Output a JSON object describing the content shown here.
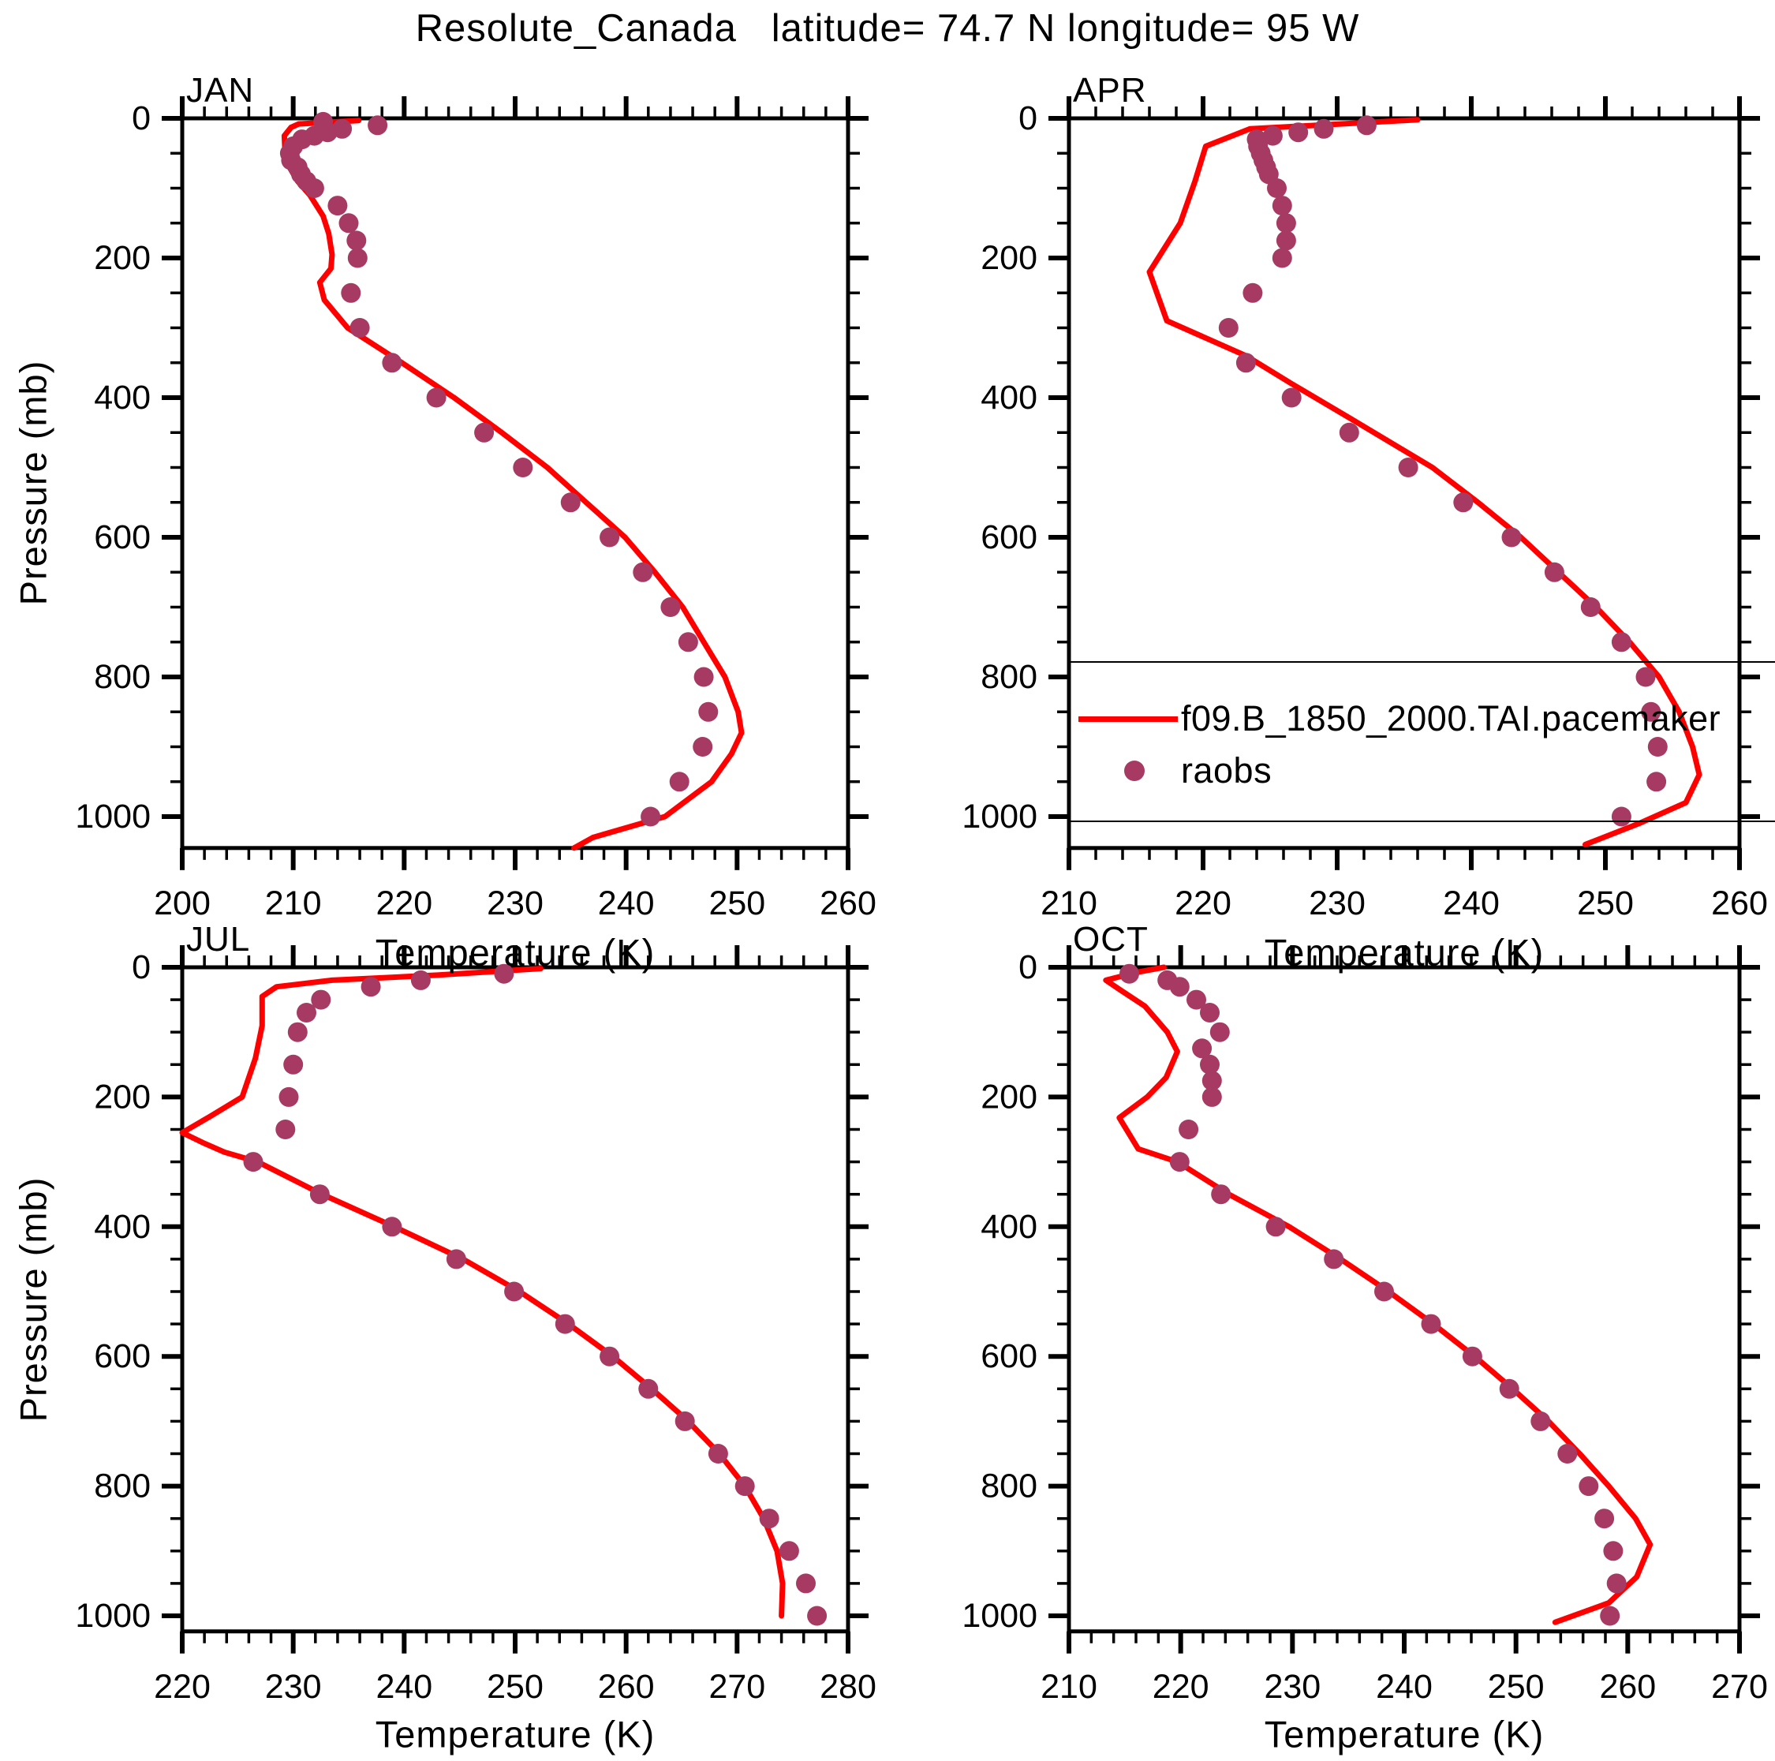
{
  "title": "Resolute_Canada   latitude= 74.7 N longitude= 95 W",
  "labels": {
    "xlabel": "Temperature (K)",
    "ylabel": "Pressure (mb)"
  },
  "legend": {
    "model_label": "f09.B_1850_2000.TAI.pacemaker",
    "obs_label": "raobs"
  },
  "colors": {
    "model_line": "#ff0000",
    "obs_dot": "#a63a62",
    "axis": "#000000",
    "background": "#ffffff"
  },
  "chart_data": {
    "type": "line+scatter",
    "title": "Resolute_Canada   latitude= 74.7 N longitude= 95 W",
    "xlabel": "Temperature (K)",
    "ylabel": "Pressure (mb)",
    "points_format": "[pressure_mb, temperature_K]",
    "y_axis": {
      "min": 0,
      "max": 1045,
      "major_step": 200,
      "minor_step": 50,
      "tick_max": 1000,
      "inverted": true
    },
    "legend_entries": [
      {
        "label": "f09.B_1850_2000.TAI.pacemaker",
        "marker": "red solid line"
      },
      {
        "label": "raobs",
        "marker": "maroon filled dot"
      }
    ],
    "panels": [
      {
        "month": "JAN",
        "x_axis": {
          "min": 200,
          "max": 260,
          "major_step": 10,
          "minor_step": 2
        },
        "model": [
          [
            3,
            215.9
          ],
          [
            8,
            210.5
          ],
          [
            13,
            209.8
          ],
          [
            25,
            209.2
          ],
          [
            60,
            209.3
          ],
          [
            90,
            210.4
          ],
          [
            110,
            211.5
          ],
          [
            140,
            212.7
          ],
          [
            165,
            213.2
          ],
          [
            195,
            213.5
          ],
          [
            215,
            213.4
          ],
          [
            235,
            212.4
          ],
          [
            260,
            212.8
          ],
          [
            300,
            214.9
          ],
          [
            350,
            219.8
          ],
          [
            400,
            224.5
          ],
          [
            450,
            228.8
          ],
          [
            500,
            232.9
          ],
          [
            550,
            236.4
          ],
          [
            600,
            239.9
          ],
          [
            650,
            242.6
          ],
          [
            700,
            245.1
          ],
          [
            750,
            247.0
          ],
          [
            800,
            248.9
          ],
          [
            850,
            250.1
          ],
          [
            880,
            250.4
          ],
          [
            910,
            249.5
          ],
          [
            950,
            247.7
          ],
          [
            1000,
            243.5
          ],
          [
            1030,
            237.0
          ],
          [
            1045,
            235.3
          ]
        ],
        "raobs": [
          [
            5,
            212.7
          ],
          [
            10,
            217.6
          ],
          [
            15,
            214.4
          ],
          [
            20,
            213.1
          ],
          [
            25,
            211.9
          ],
          [
            30,
            210.8
          ],
          [
            40,
            210.0
          ],
          [
            50,
            209.7
          ],
          [
            60,
            209.8
          ],
          [
            70,
            210.4
          ],
          [
            80,
            210.7
          ],
          [
            90,
            211.2
          ],
          [
            100,
            211.9
          ],
          [
            125,
            214.0
          ],
          [
            150,
            215.0
          ],
          [
            175,
            215.7
          ],
          [
            200,
            215.8
          ],
          [
            250,
            215.2
          ],
          [
            300,
            216.0
          ],
          [
            350,
            218.9
          ],
          [
            400,
            222.9
          ],
          [
            450,
            227.2
          ],
          [
            500,
            230.7
          ],
          [
            550,
            235.0
          ],
          [
            600,
            238.5
          ],
          [
            650,
            241.5
          ],
          [
            700,
            244.0
          ],
          [
            750,
            245.6
          ],
          [
            800,
            247.0
          ],
          [
            850,
            247.4
          ],
          [
            900,
            246.9
          ],
          [
            950,
            244.8
          ],
          [
            1000,
            242.2
          ]
        ]
      },
      {
        "month": "APR",
        "x_axis": {
          "min": 210,
          "max": 260,
          "major_step": 10,
          "minor_step": 2
        },
        "model": [
          [
            2,
            236.0
          ],
          [
            15,
            223.5
          ],
          [
            40,
            220.2
          ],
          [
            90,
            219.4
          ],
          [
            150,
            218.3
          ],
          [
            220,
            216.0
          ],
          [
            290,
            217.3
          ],
          [
            340,
            223.2
          ],
          [
            380,
            226.6
          ],
          [
            430,
            231.0
          ],
          [
            500,
            237.1
          ],
          [
            550,
            240.5
          ],
          [
            600,
            243.7
          ],
          [
            650,
            246.5
          ],
          [
            700,
            249.3
          ],
          [
            750,
            251.8
          ],
          [
            800,
            254.0
          ],
          [
            850,
            255.5
          ],
          [
            900,
            256.5
          ],
          [
            940,
            257.0
          ],
          [
            980,
            256.0
          ],
          [
            1010,
            252.5
          ],
          [
            1040,
            248.5
          ]
        ],
        "raobs": [
          [
            10,
            232.2
          ],
          [
            15,
            229.0
          ],
          [
            20,
            227.1
          ],
          [
            25,
            225.2
          ],
          [
            30,
            224.0
          ],
          [
            40,
            224.1
          ],
          [
            50,
            224.3
          ],
          [
            60,
            224.5
          ],
          [
            70,
            224.7
          ],
          [
            80,
            224.9
          ],
          [
            100,
            225.5
          ],
          [
            125,
            225.9
          ],
          [
            150,
            226.2
          ],
          [
            175,
            226.2
          ],
          [
            200,
            225.9
          ],
          [
            250,
            223.7
          ],
          [
            300,
            221.9
          ],
          [
            350,
            223.2
          ],
          [
            400,
            226.6
          ],
          [
            450,
            230.9
          ],
          [
            500,
            235.3
          ],
          [
            550,
            239.4
          ],
          [
            600,
            243.0
          ],
          [
            650,
            246.2
          ],
          [
            700,
            248.9
          ],
          [
            750,
            251.2
          ],
          [
            800,
            253.0
          ],
          [
            850,
            253.4
          ],
          [
            900,
            253.9
          ],
          [
            950,
            253.8
          ],
          [
            1000,
            251.2
          ]
        ]
      },
      {
        "month": "JUL",
        "x_axis": {
          "min": 220,
          "max": 280,
          "major_step": 10,
          "minor_step": 2
        },
        "model": [
          [
            2,
            252.3
          ],
          [
            12,
            243.0
          ],
          [
            20,
            233.5
          ],
          [
            30,
            228.5
          ],
          [
            45,
            227.2
          ],
          [
            90,
            227.2
          ],
          [
            140,
            226.6
          ],
          [
            200,
            225.4
          ],
          [
            230,
            222.5
          ],
          [
            255,
            220.0
          ],
          [
            270,
            221.8
          ],
          [
            285,
            223.8
          ],
          [
            300,
            226.8
          ],
          [
            350,
            232.6
          ],
          [
            400,
            239.1
          ],
          [
            450,
            245.3
          ],
          [
            500,
            250.4
          ],
          [
            550,
            254.8
          ],
          [
            600,
            258.8
          ],
          [
            650,
            262.3
          ],
          [
            700,
            265.6
          ],
          [
            750,
            268.4
          ],
          [
            800,
            270.7
          ],
          [
            850,
            272.4
          ],
          [
            900,
            273.6
          ],
          [
            950,
            274.1
          ],
          [
            1000,
            274.0
          ]
        ],
        "raobs": [
          [
            10,
            249.0
          ],
          [
            20,
            241.5
          ],
          [
            30,
            237.0
          ],
          [
            50,
            232.5
          ],
          [
            70,
            231.2
          ],
          [
            100,
            230.4
          ],
          [
            150,
            230.0
          ],
          [
            200,
            229.6
          ],
          [
            250,
            229.3
          ],
          [
            300,
            226.4
          ],
          [
            350,
            232.4
          ],
          [
            400,
            238.9
          ],
          [
            450,
            244.7
          ],
          [
            500,
            249.9
          ],
          [
            550,
            254.5
          ],
          [
            600,
            258.5
          ],
          [
            650,
            262.0
          ],
          [
            700,
            265.3
          ],
          [
            750,
            268.3
          ],
          [
            800,
            270.7
          ],
          [
            850,
            272.9
          ],
          [
            900,
            274.7
          ],
          [
            950,
            276.2
          ],
          [
            1000,
            277.2
          ]
        ]
      },
      {
        "month": "OCT",
        "x_axis": {
          "min": 210,
          "max": 270,
          "major_step": 10,
          "minor_step": 2
        },
        "model": [
          [
            0,
            218.5
          ],
          [
            8,
            216.0
          ],
          [
            20,
            213.3
          ],
          [
            35,
            214.6
          ],
          [
            60,
            216.8
          ],
          [
            100,
            218.8
          ],
          [
            130,
            219.7
          ],
          [
            170,
            218.7
          ],
          [
            200,
            217.0
          ],
          [
            232,
            214.5
          ],
          [
            280,
            216.2
          ],
          [
            300,
            219.7
          ],
          [
            350,
            224.3
          ],
          [
            400,
            229.7
          ],
          [
            450,
            234.3
          ],
          [
            500,
            238.6
          ],
          [
            550,
            242.6
          ],
          [
            600,
            246.3
          ],
          [
            650,
            249.7
          ],
          [
            700,
            252.9
          ],
          [
            750,
            255.7
          ],
          [
            800,
            258.3
          ],
          [
            850,
            260.7
          ],
          [
            890,
            262.0
          ],
          [
            940,
            260.8
          ],
          [
            980,
            258.3
          ],
          [
            1010,
            253.5
          ]
        ],
        "raobs": [
          [
            10,
            215.4
          ],
          [
            20,
            218.8
          ],
          [
            30,
            219.9
          ],
          [
            50,
            221.4
          ],
          [
            70,
            222.6
          ],
          [
            100,
            223.5
          ],
          [
            125,
            221.9
          ],
          [
            150,
            222.6
          ],
          [
            175,
            222.8
          ],
          [
            200,
            222.8
          ],
          [
            250,
            220.7
          ],
          [
            300,
            219.9
          ],
          [
            350,
            223.6
          ],
          [
            400,
            228.5
          ],
          [
            450,
            233.7
          ],
          [
            500,
            238.2
          ],
          [
            550,
            242.4
          ],
          [
            600,
            246.1
          ],
          [
            650,
            249.4
          ],
          [
            700,
            252.2
          ],
          [
            750,
            254.6
          ],
          [
            800,
            256.5
          ],
          [
            850,
            257.9
          ],
          [
            900,
            258.7
          ],
          [
            950,
            259.0
          ],
          [
            1000,
            258.4
          ]
        ]
      }
    ]
  }
}
